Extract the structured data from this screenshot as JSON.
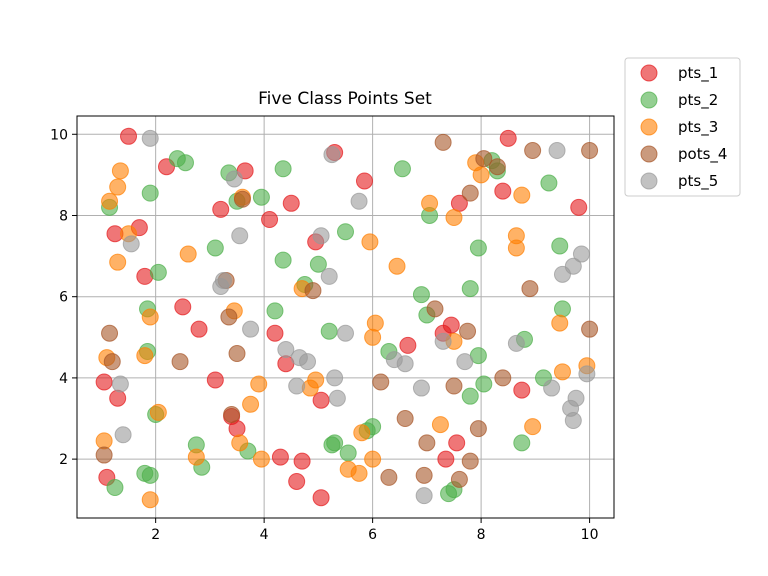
{
  "chart_data": {
    "type": "scatter",
    "title": "Five Class Points Set",
    "xlabel": "",
    "ylabel": "",
    "xlim": [
      0.55,
      10.45
    ],
    "ylim": [
      0.55,
      10.45
    ],
    "xticks": [
      2,
      4,
      6,
      8,
      10
    ],
    "yticks": [
      2,
      4,
      6,
      8,
      10
    ],
    "grid": true,
    "legend_position": "outside-top-right",
    "series": [
      {
        "name": "pts_1",
        "color": "#e41a1c",
        "points": [
          [
            1.5,
            9.95
          ],
          [
            1.05,
            3.9
          ],
          [
            1.1,
            1.55
          ],
          [
            1.25,
            7.55
          ],
          [
            1.3,
            3.5
          ],
          [
            1.7,
            7.7
          ],
          [
            1.8,
            6.5
          ],
          [
            2.2,
            9.2
          ],
          [
            2.5,
            5.75
          ],
          [
            2.8,
            5.2
          ],
          [
            3.1,
            3.95
          ],
          [
            3.2,
            8.15
          ],
          [
            3.4,
            3.05
          ],
          [
            3.5,
            2.75
          ],
          [
            3.65,
            9.1
          ],
          [
            4.1,
            7.9
          ],
          [
            4.2,
            5.1
          ],
          [
            4.3,
            2.05
          ],
          [
            4.4,
            4.35
          ],
          [
            4.5,
            8.3
          ],
          [
            4.6,
            1.45
          ],
          [
            4.7,
            1.95
          ],
          [
            4.95,
            7.35
          ],
          [
            5.05,
            1.05
          ],
          [
            5.05,
            3.45
          ],
          [
            5.3,
            9.55
          ],
          [
            5.85,
            8.85
          ],
          [
            6.65,
            4.8
          ],
          [
            7.3,
            5.1
          ],
          [
            7.35,
            2.0
          ],
          [
            7.45,
            5.3
          ],
          [
            7.55,
            2.4
          ],
          [
            7.6,
            8.3
          ],
          [
            8.4,
            8.6
          ],
          [
            8.5,
            9.9
          ],
          [
            8.75,
            3.7
          ],
          [
            9.8,
            8.2
          ]
        ]
      },
      {
        "name": "pts_2",
        "color": "#4daf4a",
        "points": [
          [
            1.15,
            8.2
          ],
          [
            1.25,
            1.3
          ],
          [
            1.8,
            1.65
          ],
          [
            1.85,
            4.65
          ],
          [
            1.85,
            5.7
          ],
          [
            1.9,
            8.55
          ],
          [
            1.9,
            1.6
          ],
          [
            2.0,
            3.1
          ],
          [
            2.05,
            6.6
          ],
          [
            2.4,
            9.4
          ],
          [
            2.55,
            9.3
          ],
          [
            2.75,
            2.35
          ],
          [
            2.85,
            1.8
          ],
          [
            3.1,
            7.2
          ],
          [
            3.35,
            9.05
          ],
          [
            3.5,
            8.35
          ],
          [
            3.7,
            2.2
          ],
          [
            3.95,
            8.45
          ],
          [
            4.2,
            5.65
          ],
          [
            4.35,
            6.9
          ],
          [
            4.35,
            9.15
          ],
          [
            4.75,
            6.3
          ],
          [
            5.0,
            6.8
          ],
          [
            5.2,
            5.15
          ],
          [
            5.25,
            2.35
          ],
          [
            5.3,
            2.4
          ],
          [
            5.5,
            7.6
          ],
          [
            5.55,
            2.15
          ],
          [
            5.9,
            2.7
          ],
          [
            6.0,
            2.8
          ],
          [
            6.3,
            4.65
          ],
          [
            6.55,
            9.15
          ],
          [
            6.9,
            6.05
          ],
          [
            7.0,
            5.55
          ],
          [
            7.05,
            8.0
          ],
          [
            7.4,
            1.15
          ],
          [
            7.5,
            1.25
          ],
          [
            7.8,
            3.55
          ],
          [
            7.8,
            6.2
          ],
          [
            7.95,
            4.55
          ],
          [
            7.95,
            7.2
          ],
          [
            8.05,
            3.85
          ],
          [
            8.2,
            9.35
          ],
          [
            8.3,
            9.1
          ],
          [
            8.75,
            2.4
          ],
          [
            8.8,
            4.95
          ],
          [
            9.15,
            4.0
          ],
          [
            9.25,
            8.8
          ],
          [
            9.45,
            7.25
          ],
          [
            9.5,
            5.7
          ]
        ]
      },
      {
        "name": "pts_3",
        "color": "#ff7f00",
        "points": [
          [
            1.05,
            2.45
          ],
          [
            1.1,
            4.5
          ],
          [
            1.15,
            8.35
          ],
          [
            1.3,
            6.85
          ],
          [
            1.3,
            8.7
          ],
          [
            1.35,
            9.1
          ],
          [
            1.5,
            7.55
          ],
          [
            1.8,
            4.55
          ],
          [
            1.9,
            5.5
          ],
          [
            1.9,
            1.0
          ],
          [
            2.05,
            3.15
          ],
          [
            2.6,
            7.05
          ],
          [
            2.75,
            2.05
          ],
          [
            3.45,
            5.65
          ],
          [
            3.55,
            2.4
          ],
          [
            3.6,
            8.45
          ],
          [
            3.75,
            3.35
          ],
          [
            3.9,
            3.85
          ],
          [
            3.95,
            2.0
          ],
          [
            4.7,
            6.2
          ],
          [
            4.85,
            3.75
          ],
          [
            4.95,
            3.95
          ],
          [
            5.55,
            1.75
          ],
          [
            5.75,
            1.65
          ],
          [
            5.8,
            2.65
          ],
          [
            5.95,
            7.35
          ],
          [
            6.0,
            5.0
          ],
          [
            6.0,
            2.0
          ],
          [
            6.05,
            5.35
          ],
          [
            6.45,
            6.75
          ],
          [
            7.05,
            8.3
          ],
          [
            7.25,
            2.85
          ],
          [
            7.5,
            4.9
          ],
          [
            7.5,
            7.95
          ],
          [
            7.9,
            9.3
          ],
          [
            8.0,
            9.0
          ],
          [
            8.65,
            7.5
          ],
          [
            8.65,
            7.2
          ],
          [
            8.75,
            8.5
          ],
          [
            8.95,
            2.8
          ],
          [
            9.45,
            5.35
          ],
          [
            9.5,
            4.15
          ],
          [
            9.95,
            4.3
          ]
        ]
      },
      {
        "name": "pots_4",
        "color": "#a65628",
        "points": [
          [
            1.05,
            2.1
          ],
          [
            1.15,
            5.1
          ],
          [
            1.2,
            4.4
          ],
          [
            2.45,
            4.4
          ],
          [
            3.3,
            6.4
          ],
          [
            3.35,
            5.5
          ],
          [
            3.4,
            3.1
          ],
          [
            3.5,
            4.6
          ],
          [
            3.6,
            8.4
          ],
          [
            4.9,
            6.15
          ],
          [
            6.15,
            3.9
          ],
          [
            6.3,
            1.55
          ],
          [
            6.6,
            3.0
          ],
          [
            6.95,
            1.6
          ],
          [
            7.0,
            2.4
          ],
          [
            7.15,
            5.7
          ],
          [
            7.3,
            9.8
          ],
          [
            7.5,
            3.8
          ],
          [
            7.6,
            1.5
          ],
          [
            7.75,
            5.15
          ],
          [
            7.8,
            8.55
          ],
          [
            7.8,
            1.95
          ],
          [
            7.95,
            2.75
          ],
          [
            8.05,
            9.4
          ],
          [
            8.3,
            9.2
          ],
          [
            8.4,
            4.0
          ],
          [
            8.9,
            6.2
          ],
          [
            8.95,
            9.6
          ],
          [
            10.0,
            9.6
          ],
          [
            10.0,
            5.2
          ]
        ]
      },
      {
        "name": "pts_5",
        "color": "#999999",
        "points": [
          [
            1.35,
            3.85
          ],
          [
            1.4,
            2.6
          ],
          [
            1.55,
            7.3
          ],
          [
            1.9,
            9.9
          ],
          [
            3.2,
            6.25
          ],
          [
            3.25,
            6.4
          ],
          [
            3.45,
            8.9
          ],
          [
            3.55,
            7.5
          ],
          [
            3.75,
            5.2
          ],
          [
            4.4,
            4.7
          ],
          [
            4.6,
            3.8
          ],
          [
            4.65,
            4.5
          ],
          [
            4.8,
            4.4
          ],
          [
            5.05,
            7.5
          ],
          [
            5.2,
            6.5
          ],
          [
            5.25,
            9.5
          ],
          [
            5.3,
            4.0
          ],
          [
            5.35,
            3.5
          ],
          [
            5.5,
            5.1
          ],
          [
            5.75,
            8.35
          ],
          [
            6.4,
            4.45
          ],
          [
            6.6,
            4.35
          ],
          [
            6.9,
            3.75
          ],
          [
            6.95,
            1.1
          ],
          [
            7.3,
            4.9
          ],
          [
            7.7,
            4.4
          ],
          [
            8.65,
            4.85
          ],
          [
            9.3,
            3.75
          ],
          [
            9.4,
            9.6
          ],
          [
            9.5,
            6.55
          ],
          [
            9.7,
            6.75
          ],
          [
            9.65,
            3.25
          ],
          [
            9.7,
            2.95
          ],
          [
            9.75,
            3.5
          ],
          [
            9.85,
            7.05
          ],
          [
            9.95,
            4.1
          ]
        ]
      }
    ]
  }
}
